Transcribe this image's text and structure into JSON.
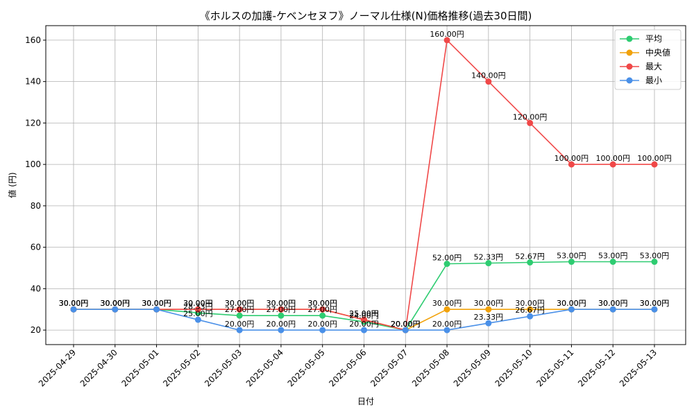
{
  "chart_data": {
    "type": "line",
    "title": "《ホルスの加護-ケベンセヌフ》ノーマル仕様(N)価格推移(過去30日間)",
    "xlabel": "日付",
    "ylabel": "値 (円)",
    "ylim": [
      13,
      167
    ],
    "yticks": [
      20,
      40,
      60,
      80,
      100,
      120,
      140,
      160
    ],
    "grid": true,
    "legend_position": "top-right",
    "label_suffix": "円",
    "categories": [
      "2025-04-29",
      "2025-04-30",
      "2025-05-01",
      "2025-05-02",
      "2025-05-03",
      "2025-05-04",
      "2025-05-05",
      "2025-05-06",
      "2025-05-07",
      "2025-05-08",
      "2025-05-09",
      "2025-05-10",
      "2025-05-11",
      "2025-05-12",
      "2025-05-13"
    ],
    "series": [
      {
        "name": "平均",
        "color": "#2ecc71",
        "values": [
          30,
          30,
          30,
          28.33,
          27,
          27,
          27,
          24,
          20,
          52,
          52.33,
          52.67,
          53,
          53,
          53
        ]
      },
      {
        "name": "中央値",
        "color": "#f1a20b",
        "values": [
          30,
          30,
          30,
          30,
          30,
          30,
          30,
          25,
          20,
          30,
          30,
          30,
          30,
          30,
          30
        ]
      },
      {
        "name": "最大",
        "color": "#f04848",
        "values": [
          30,
          30,
          30,
          30,
          30,
          30,
          30,
          25,
          20,
          160,
          140,
          120,
          100,
          100,
          100
        ]
      },
      {
        "name": "最小",
        "color": "#4a90e8",
        "values": [
          30,
          30,
          30,
          25,
          20,
          20,
          20,
          20,
          20,
          20,
          23.33,
          26.67,
          30,
          30,
          30
        ]
      }
    ]
  }
}
